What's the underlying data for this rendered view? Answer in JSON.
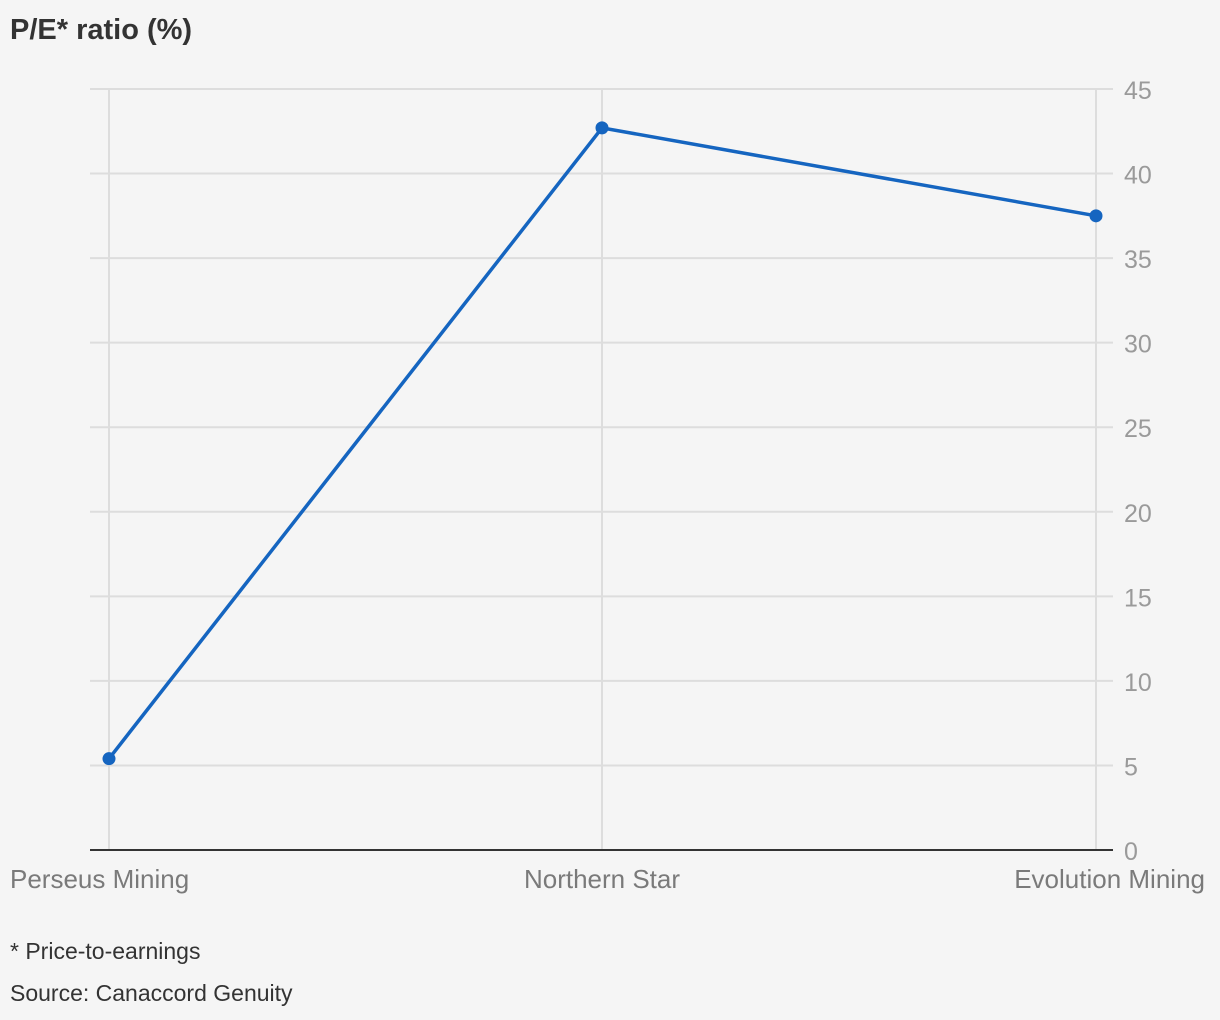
{
  "chart_data": {
    "type": "line",
    "title": "P/E* ratio (%)",
    "categories": [
      "Perseus Mining",
      "Northern Star",
      "Evolution Mining"
    ],
    "series": [
      {
        "values": [
          5.4,
          42.7,
          37.5
        ],
        "color": "#1565c0"
      }
    ],
    "yticks": [
      0,
      5,
      10,
      15,
      20,
      25,
      30,
      35,
      40,
      45
    ],
    "ylim": [
      0,
      45
    ],
    "yaxis_position": "right",
    "grid": true
  },
  "footnotes": {
    "note": "* Price-to-earnings",
    "source": "Source: Canaccord Genuity"
  },
  "colors": {
    "background": "#f5f5f5",
    "grid": "#dddddd",
    "axis": "#333333",
    "tick_text": "#9a9a9a",
    "category_text": "#7a7a7a"
  }
}
